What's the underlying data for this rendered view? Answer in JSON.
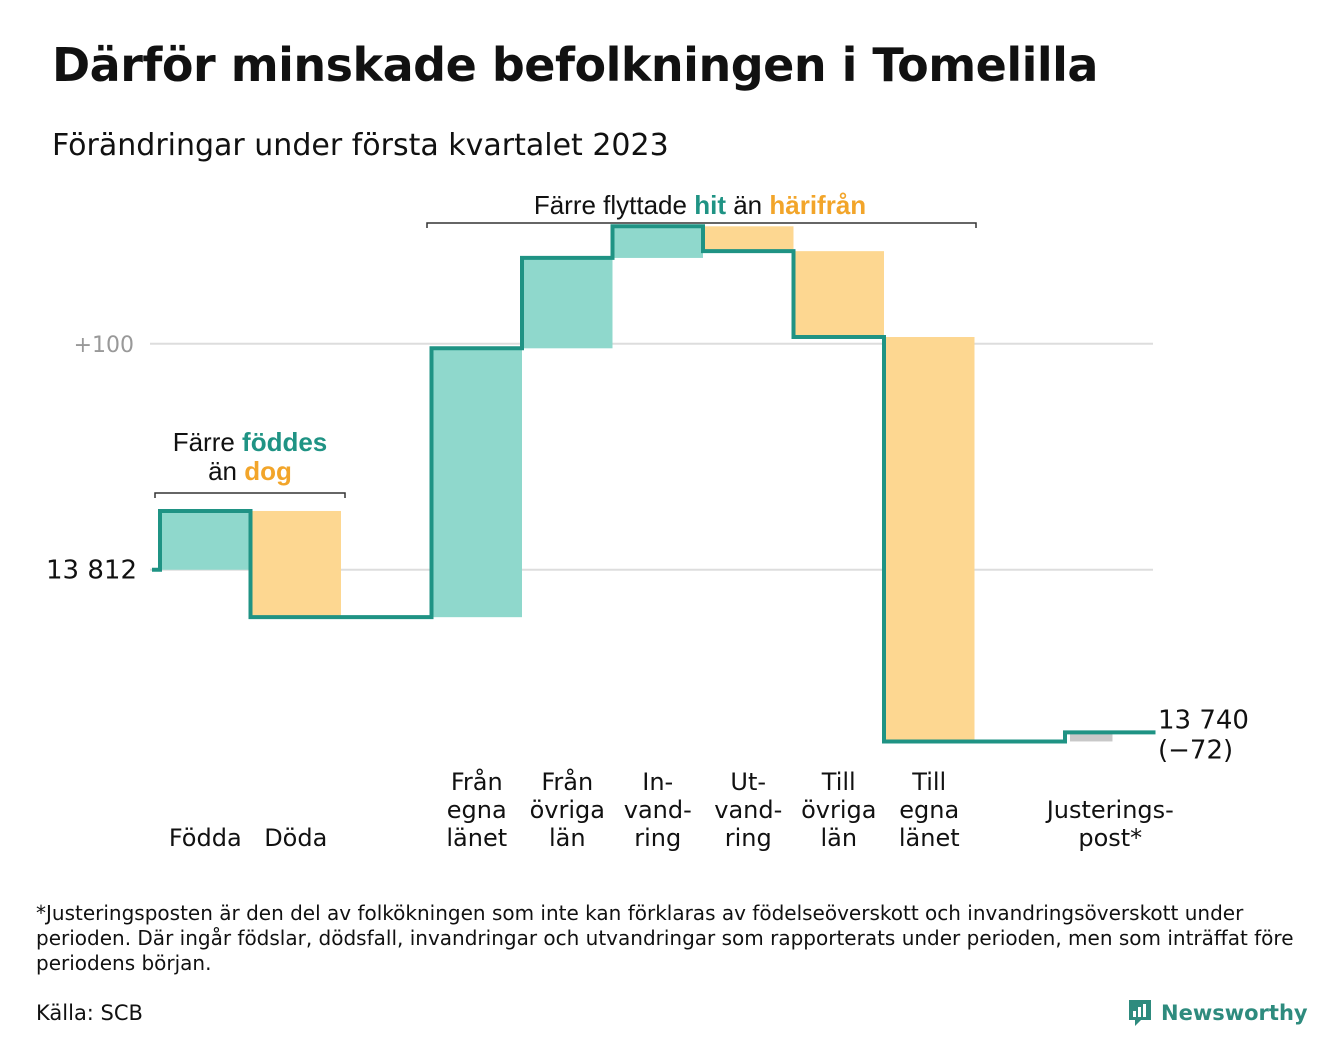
{
  "title": "Därför minskade befolkningen i Tomelilla",
  "subtitle": "Förändringar under första kvartalet 2023",
  "footnote": "*Justeringsposten är den del av folkökningen som inte kan förklaras av födelseöverskott och invandringsöverskott under perioden. Där ingår födslar, dödsfall, invandringar och utvandringar som rapporterats under perioden, men som inträffat före periodens början.",
  "source": "Källa: SCB",
  "brand": "Newsworthy",
  "colors": {
    "increase": "#8fd8cc",
    "decrease": "#fdd791",
    "adjustment": "#c8c8c8",
    "line": "#1f9384",
    "teal_text": "#1f9384",
    "orange_text": "#f2a52a",
    "grid": "#dddddd",
    "gridlabel": "#999999"
  },
  "chart_data": {
    "type": "waterfall",
    "start_value": 13812,
    "start_label": "13 812",
    "end_label": "13 740",
    "end_change_label": "(−72)",
    "gridline_label": "+100",
    "gridline_values": [
      13812,
      13912
    ],
    "ylim": [
      13730,
      13969
    ],
    "steps": [
      {
        "key": "fodda",
        "label_lines": [
          "Födda"
        ],
        "change": 26,
        "kind": "increase"
      },
      {
        "key": "doda",
        "label_lines": [
          "Döda"
        ],
        "change": -47,
        "kind": "decrease"
      },
      {
        "key": "gap",
        "label_lines": [],
        "change": 0,
        "kind": "gap"
      },
      {
        "key": "fran-egna-lanet",
        "label_lines": [
          "Från",
          "egna",
          "länet"
        ],
        "change": 119,
        "kind": "increase"
      },
      {
        "key": "fran-ovriga-lan",
        "label_lines": [
          "Från",
          "övriga",
          "län"
        ],
        "change": 40,
        "kind": "increase"
      },
      {
        "key": "invandring",
        "label_lines": [
          "In-",
          "vand-",
          "ring"
        ],
        "change": 14,
        "kind": "increase"
      },
      {
        "key": "utvandring",
        "label_lines": [
          "Ut-",
          "vand-",
          "ring"
        ],
        "change": -11,
        "kind": "decrease"
      },
      {
        "key": "till-ovriga-lan",
        "label_lines": [
          "Till",
          "övriga",
          "län"
        ],
        "change": -38,
        "kind": "decrease"
      },
      {
        "key": "till-egna-lanet",
        "label_lines": [
          "Till",
          "egna",
          "länet"
        ],
        "change": -179,
        "kind": "decrease"
      },
      {
        "key": "gap2",
        "label_lines": [],
        "change": 0,
        "kind": "gap"
      },
      {
        "key": "justeringspost",
        "label_lines": [
          "Justerings-",
          "post*"
        ],
        "change": 4,
        "kind": "adjustment"
      }
    ],
    "annotations": [
      {
        "key": "births",
        "parts": [
          [
            "Färre ",
            "plain"
          ],
          [
            "föddes",
            "teal"
          ],
          [
            "|",
            "break"
          ],
          [
            "än ",
            "plain"
          ],
          [
            "dog",
            "orange"
          ]
        ]
      },
      {
        "key": "moves",
        "parts": [
          [
            "Färre flyttade ",
            "plain"
          ],
          [
            "hit",
            "teal"
          ],
          [
            " än ",
            "plain"
          ],
          [
            "härifrån",
            "orange"
          ]
        ]
      }
    ]
  }
}
